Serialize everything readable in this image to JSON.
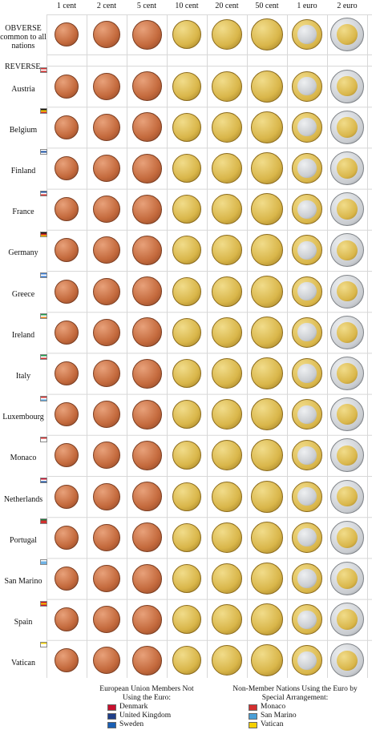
{
  "columns": [
    "1 cent",
    "2 cent",
    "5 cent",
    "10 cent",
    "20 cent",
    "50 cent",
    "1 euro",
    "2 euro"
  ],
  "obverse_label": "OBVERSE common to all nations",
  "reverse_label": "REVERSE",
  "countries": [
    {
      "name": "Austria",
      "flag": [
        "#d32f2f",
        "#ffffff",
        "#d32f2f"
      ]
    },
    {
      "name": "Belgium",
      "flag": [
        "#111111",
        "#f5d000",
        "#d32f2f"
      ]
    },
    {
      "name": "Finland",
      "flag": [
        "#ffffff",
        "#1a4fa0",
        "#ffffff"
      ]
    },
    {
      "name": "France",
      "flag": [
        "#1a4fa0",
        "#ffffff",
        "#d32f2f"
      ]
    },
    {
      "name": "Germany",
      "flag": [
        "#111111",
        "#d32f2f",
        "#f5c400"
      ]
    },
    {
      "name": "Greece",
      "flag": [
        "#3d7fd6",
        "#ffffff",
        "#3d7fd6"
      ]
    },
    {
      "name": "Ireland",
      "flag": [
        "#1e9a49",
        "#ffffff",
        "#f08a24"
      ]
    },
    {
      "name": "Italy",
      "flag": [
        "#1e9a49",
        "#ffffff",
        "#d32f2f"
      ]
    },
    {
      "name": "Luxembourg",
      "flag": [
        "#d32f2f",
        "#ffffff",
        "#5aa7e0"
      ]
    },
    {
      "name": "Monaco",
      "flag": [
        "#d32f2f",
        "#ffffff",
        "#ffffff"
      ]
    },
    {
      "name": "Netherlands",
      "flag": [
        "#c8102e",
        "#ffffff",
        "#1a4fa0"
      ]
    },
    {
      "name": "Portugal",
      "flag": [
        "#1e7a3a",
        "#d32f2f",
        "#d32f2f"
      ]
    },
    {
      "name": "San Marino",
      "flag": [
        "#ffffff",
        "#6fb3e6",
        "#6fb3e6"
      ]
    },
    {
      "name": "Spain",
      "flag": [
        "#c8102e",
        "#f5c400",
        "#c8102e"
      ]
    },
    {
      "name": "Vatican",
      "flag": [
        "#f5d000",
        "#ffffff",
        "#ffffff"
      ]
    }
  ],
  "legend_left": {
    "title": "European Union Members Not Using the Euro:",
    "items": [
      {
        "name": "Denmark",
        "color": "#c8102e"
      },
      {
        "name": "United Kingdom",
        "color": "#1f3f8a"
      },
      {
        "name": "Sweden",
        "color": "#1a5fb4"
      }
    ]
  },
  "legend_right": {
    "title": "Non-Member Nations Using the Euro by Special Arrangement:",
    "items": [
      {
        "name": "Monaco",
        "color": "#d32f2f"
      },
      {
        "name": "San Marino",
        "color": "#4aa0d8"
      },
      {
        "name": "Vatican",
        "color": "#f5d000"
      }
    ]
  },
  "colors": {
    "copper": "#c46a3d",
    "copper_light": "#e8a17a",
    "gold": "#d9b64a",
    "gold_light": "#f1dc8a",
    "silver": "#c9ccd0",
    "silver_light": "#eef0f2"
  }
}
